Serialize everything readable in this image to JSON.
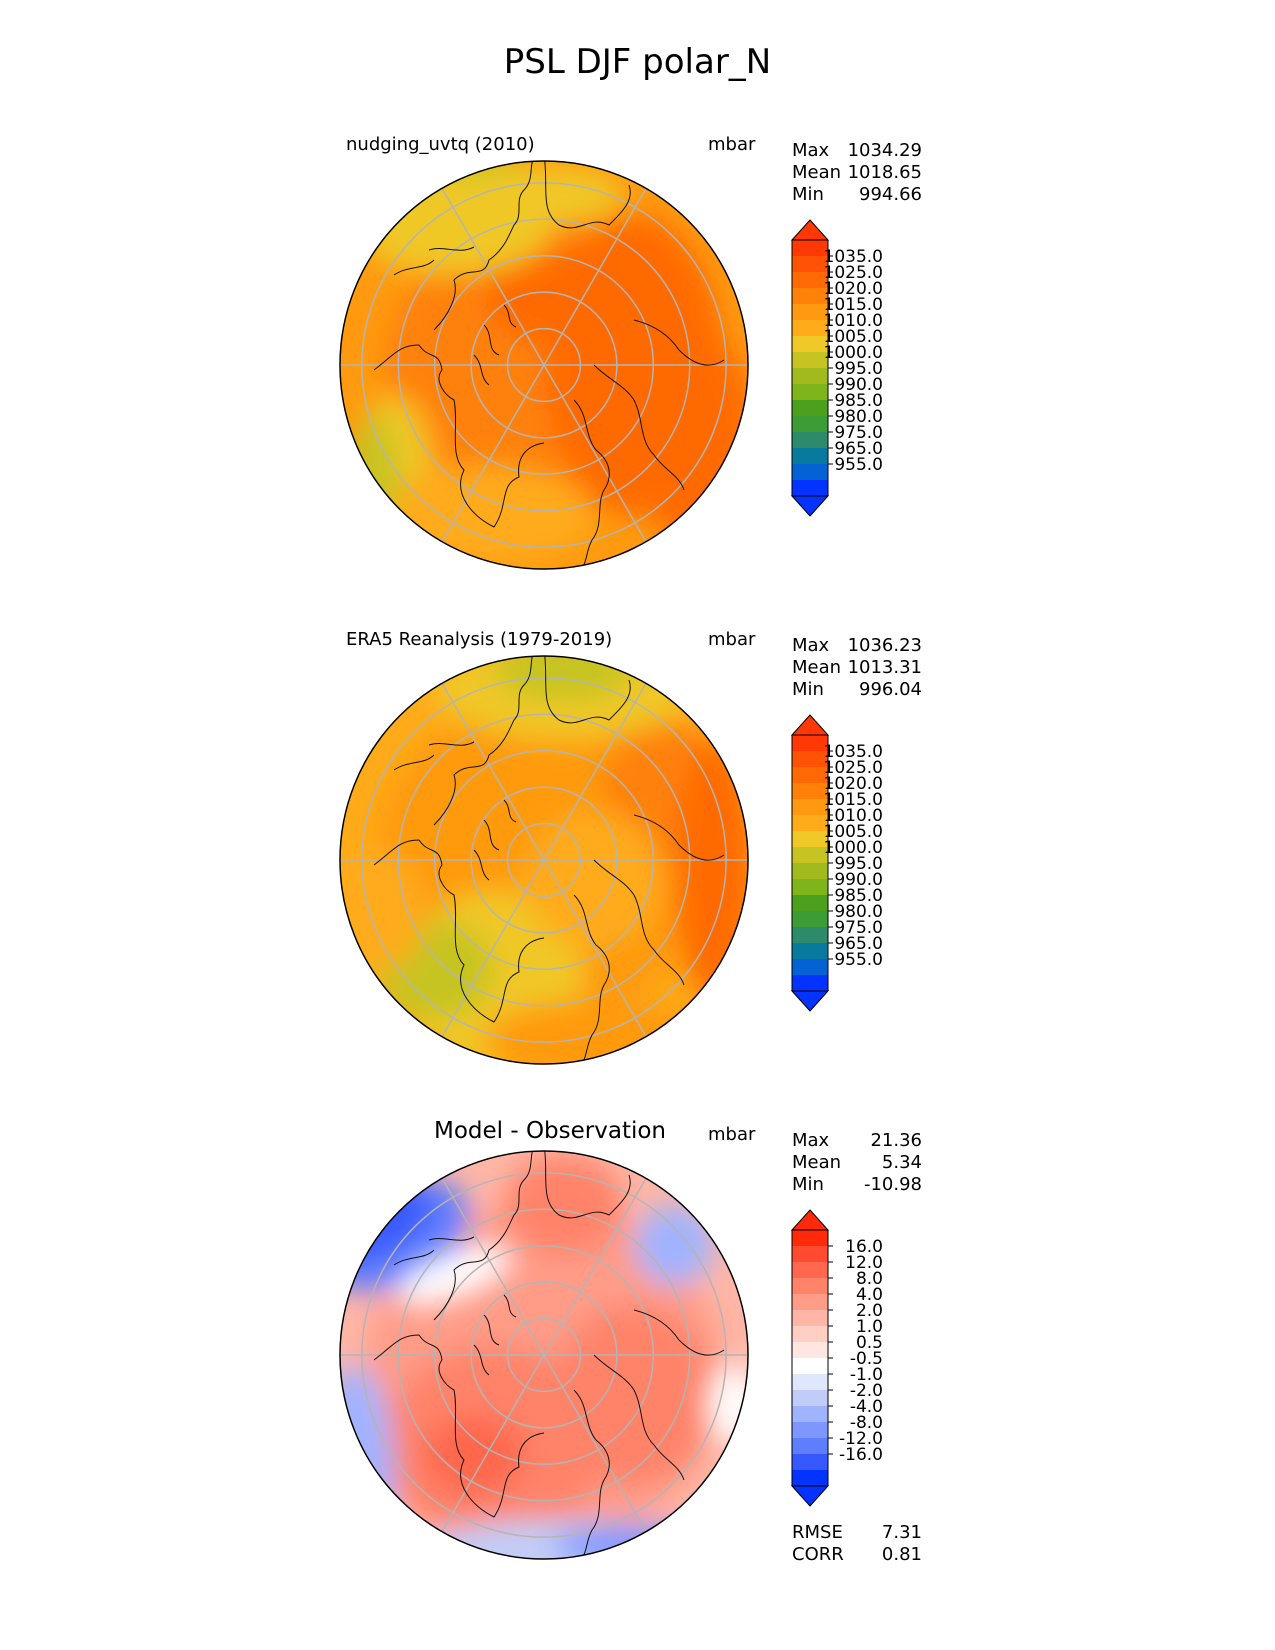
{
  "figure": {
    "title": "PSL DJF polar_N"
  },
  "colors": {
    "psl_levels": [
      "#0433ff",
      "#0462d4",
      "#087a9e",
      "#2d8a6a",
      "#3c9c35",
      "#4ba01d",
      "#7eb51a",
      "#a3ba1e",
      "#c6c422",
      "#f0c828",
      "#ffab1a",
      "#ff9a10",
      "#ff8108",
      "#ff6a05",
      "#ff5205",
      "#ff3805"
    ],
    "diff_levels": [
      "#0433ff",
      "#3858ff",
      "#5f7eff",
      "#7e97ff",
      "#a0b3ff",
      "#c1cdf8",
      "#e0e6fb",
      "#ffffff",
      "#ffe6e1",
      "#ffcfc3",
      "#ffb6a6",
      "#ff9c88",
      "#ff8369",
      "#ff674e",
      "#ff4c30",
      "#ff2a0a"
    ],
    "coast": "#111111",
    "grid": "#b4b4b4"
  },
  "chart_data": [
    {
      "type": "heatmap",
      "projection": "north polar stereographic",
      "title": "nudging_uvtq (2010)",
      "units": "mbar",
      "stats": [
        {
          "label": "Max",
          "value": "1034.29"
        },
        {
          "label": "Mean",
          "value": "1018.65"
        },
        {
          "label": "Min",
          "value": "994.66"
        }
      ],
      "colorbar_ticks": [
        "1035.0",
        "1025.0",
        "1020.0",
        "1015.0",
        "1010.0",
        "1005.0",
        "1000.0",
        "995.0",
        "990.0",
        "985.0",
        "980.0",
        "975.0",
        "965.0",
        "955.0"
      ],
      "dominant_range": [
        1005,
        1030
      ]
    },
    {
      "type": "heatmap",
      "projection": "north polar stereographic",
      "title": "ERA5 Reanalysis (1979-2019)",
      "units": "mbar",
      "stats": [
        {
          "label": "Max",
          "value": "1036.23"
        },
        {
          "label": "Mean",
          "value": "1013.31"
        },
        {
          "label": "Min",
          "value": "996.04"
        }
      ],
      "colorbar_ticks": [
        "1035.0",
        "1025.0",
        "1020.0",
        "1015.0",
        "1010.0",
        "1005.0",
        "1000.0",
        "995.0",
        "990.0",
        "985.0",
        "980.0",
        "975.0",
        "965.0",
        "955.0"
      ],
      "dominant_range": [
        1000,
        1030
      ]
    },
    {
      "type": "heatmap",
      "projection": "north polar stereographic",
      "title": "Model - Observation",
      "units": "mbar",
      "stats": [
        {
          "label": "Max",
          "value": "21.36"
        },
        {
          "label": "Mean",
          "value": "5.34"
        },
        {
          "label": "Min",
          "value": "-10.98"
        }
      ],
      "extra_stats": [
        {
          "label": "RMSE",
          "value": "7.31"
        },
        {
          "label": "CORR",
          "value": "0.81"
        }
      ],
      "colorbar_ticks": [
        "16.0",
        "12.0",
        "8.0",
        "4.0",
        "2.0",
        "1.0",
        "0.5",
        "-0.5",
        "-1.0",
        "-2.0",
        "-4.0",
        "-8.0",
        "-12.0",
        "-16.0"
      ],
      "dominant_range": [
        -8,
        16
      ]
    }
  ]
}
